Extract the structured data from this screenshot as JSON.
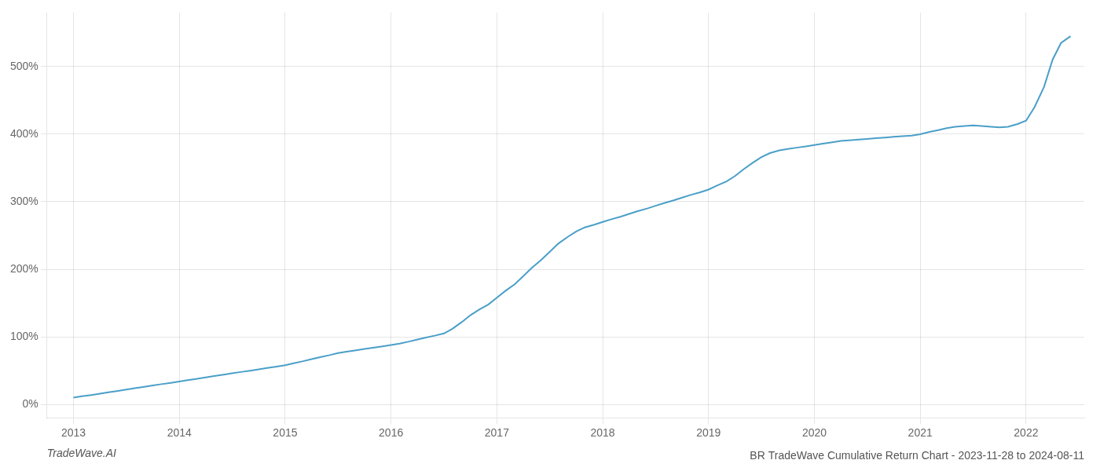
{
  "chart_data": {
    "type": "line",
    "title": "BR TradeWave Cumulative Return Chart - 2023-11-28 to 2024-08-11",
    "annotations": [
      "TradeWave.AI"
    ],
    "color": "#4a9fc8",
    "x": [
      2013.0,
      2013.08,
      2013.17,
      2013.25,
      2013.33,
      2013.42,
      2013.5,
      2013.58,
      2013.67,
      2013.75,
      2013.83,
      2013.92,
      2014.0,
      2014.08,
      2014.17,
      2014.25,
      2014.33,
      2014.42,
      2014.5,
      2014.58,
      2014.67,
      2014.75,
      2014.83,
      2014.92,
      2015.0,
      2015.08,
      2015.17,
      2015.25,
      2015.33,
      2015.42,
      2015.5,
      2015.58,
      2015.67,
      2015.75,
      2015.83,
      2015.92,
      2016.0,
      2016.08,
      2016.17,
      2016.25,
      2016.33,
      2016.42,
      2016.5,
      2016.58,
      2016.67,
      2016.75,
      2016.83,
      2016.92,
      2017.0,
      2017.08,
      2017.17,
      2017.25,
      2017.33,
      2017.42,
      2017.5,
      2017.58,
      2017.67,
      2017.75,
      2017.83,
      2017.92,
      2018.0,
      2018.08,
      2018.17,
      2018.25,
      2018.33,
      2018.42,
      2018.5,
      2018.58,
      2018.67,
      2018.75,
      2018.83,
      2018.92,
      2019.0,
      2019.08,
      2019.17,
      2019.25,
      2019.33,
      2019.42,
      2019.5,
      2019.58,
      2019.67,
      2019.75,
      2019.83,
      2019.92,
      2020.0,
      2020.08,
      2020.17,
      2020.25,
      2020.33,
      2020.42,
      2020.5,
      2020.58,
      2020.67,
      2020.75,
      2020.83,
      2020.92,
      2021.0,
      2021.08,
      2021.17,
      2021.25,
      2021.33,
      2021.42,
      2021.5,
      2021.58,
      2021.67,
      2021.75,
      2021.83,
      2021.92,
      2022.0,
      2022.08,
      2022.17,
      2022.25,
      2022.33,
      2022.42
    ],
    "values": [
      10,
      12,
      14,
      16,
      18,
      20,
      22,
      24,
      26,
      28,
      30,
      32,
      34,
      36,
      38,
      40,
      42,
      44,
      46,
      48,
      50,
      52,
      54,
      56,
      58,
      61,
      64,
      67,
      70,
      73,
      76,
      78,
      80,
      82,
      84,
      86,
      88,
      90,
      93,
      96,
      99,
      102,
      105,
      112,
      122,
      132,
      140,
      148,
      158,
      168,
      178,
      190,
      202,
      214,
      226,
      238,
      248,
      256,
      262,
      266,
      270,
      274,
      278,
      282,
      286,
      290,
      294,
      298,
      302,
      306,
      310,
      314,
      318,
      324,
      330,
      338,
      348,
      358,
      366,
      372,
      376,
      378,
      380,
      382,
      384,
      386,
      388,
      390,
      391,
      392,
      393,
      394,
      395,
      396,
      397,
      398,
      400,
      403,
      406,
      409,
      411,
      412,
      413,
      412,
      411,
      410,
      411,
      415,
      420,
      440,
      470,
      510,
      535,
      545
    ],
    "xlim": [
      2012.75,
      2022.55
    ],
    "ylim": [
      -20,
      580
    ],
    "xticks": [
      2013,
      2014,
      2015,
      2016,
      2017,
      2018,
      2019,
      2020,
      2021,
      2022
    ],
    "yticks": [
      {
        "value": 0,
        "label": "0%"
      },
      {
        "value": 100,
        "label": "100%"
      },
      {
        "value": 200,
        "label": "200%"
      },
      {
        "value": 300,
        "label": "300%"
      },
      {
        "value": 400,
        "label": "400%"
      },
      {
        "value": 500,
        "label": "500%"
      }
    ],
    "grid": true
  }
}
